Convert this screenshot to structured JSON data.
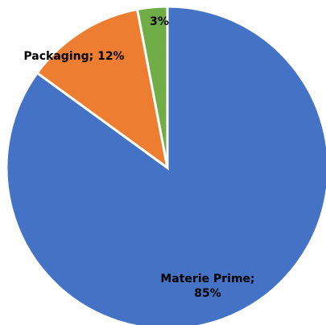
{
  "chart_data": {
    "type": "pie",
    "slices": [
      {
        "label": "Materie Prime",
        "value": 85,
        "color": "#4472C4",
        "label_lines": [
          "Materie Prime;",
          "85%"
        ]
      },
      {
        "label": "Packaging",
        "value": 12,
        "color": "#ED7D31",
        "label_lines": [
          "Packaging; 12%"
        ]
      },
      {
        "label": "",
        "value": 3,
        "color": "#70AD47",
        "label_lines": [
          "3%"
        ]
      }
    ],
    "unit": "%",
    "start_angle_deg": 0,
    "direction": "clockwise"
  }
}
